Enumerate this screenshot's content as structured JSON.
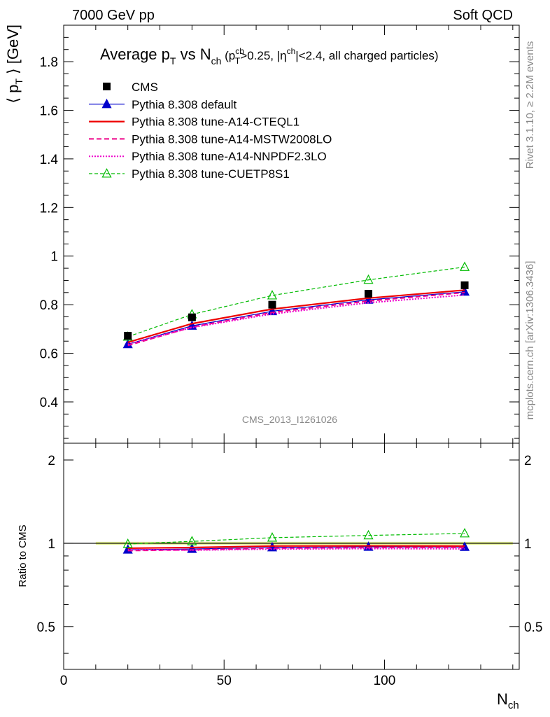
{
  "header": {
    "left": "7000 GeV pp",
    "right": "Soft QCD"
  },
  "side_text": {
    "rivet": "Rivet 3.1.10, ≥ 2.2M events",
    "mcplots": "mcplots.cern.ch [arXiv:1306.3436]"
  },
  "watermark": "CMS_2013_I1261026",
  "chart_data": {
    "type": "line",
    "title": {
      "main_a": "Average p",
      "sub_T": "T",
      "main_b": " vs N",
      "sub_ch": "ch",
      "cond_a": " (p",
      "cond_sup_ch": "ch",
      "cond_sub_T": "T",
      "cond_b": ">0.25, |η",
      "cond_sup_eta": "ch",
      "cond_c": "|<2.4, all charged particles)"
    },
    "ylabel": {
      "a": "⟨ p",
      "sub": "T",
      "b": " ⟩ [GeV]"
    },
    "xlabel": {
      "a": "N",
      "sub": "ch"
    },
    "ratio_ylabel": "Ratio to CMS",
    "xlim": [
      0,
      142
    ],
    "ylim": [
      0.23,
      1.95
    ],
    "ratio_ylim": [
      0.35,
      2.3
    ],
    "x_ticks": [
      "0",
      "50",
      "100"
    ],
    "y_ticks": [
      "0.4",
      "0.6",
      "0.8",
      "1",
      "1.2",
      "1.4",
      "1.6",
      "1.8"
    ],
    "ratio_ticks": [
      "0.5",
      "1",
      "2"
    ],
    "legend_position": "top-left",
    "x": [
      20,
      40,
      65,
      95,
      125
    ],
    "data": {
      "name": "CMS",
      "values": [
        0.672,
        0.748,
        0.8,
        0.845,
        0.88
      ],
      "color": "#000000"
    },
    "series": [
      {
        "name": "Pythia 8.308 default",
        "color": "#0000cc",
        "style": "solid",
        "width": 1.2,
        "marker": "triangle-filled",
        "values": [
          0.637,
          0.713,
          0.773,
          0.82,
          0.853
        ]
      },
      {
        "name": "Pythia 8.308 tune-A14-CTEQL1",
        "color": "#ee0000",
        "style": "solid",
        "width": 2.2,
        "marker": "none",
        "values": [
          0.645,
          0.722,
          0.782,
          0.827,
          0.86
        ]
      },
      {
        "name": "Pythia 8.308 tune-A14-MSTW2008LO",
        "color": "#ee0088",
        "style": "dashed",
        "width": 2.0,
        "marker": "none",
        "values": [
          0.632,
          0.708,
          0.768,
          0.815,
          0.85
        ]
      },
      {
        "name": "Pythia 8.308 tune-A14-NNPDF2.3LO",
        "color": "#ee00cc",
        "style": "dotted",
        "width": 2.0,
        "marker": "none",
        "values": [
          0.637,
          0.706,
          0.762,
          0.808,
          0.84
        ]
      },
      {
        "name": "Pythia 8.308 tune-CUETP8S1",
        "color": "#00bb00",
        "style": "dashed-thin",
        "width": 1.2,
        "marker": "triangle-open",
        "values": [
          0.668,
          0.76,
          0.838,
          0.902,
          0.955
        ]
      }
    ],
    "uncertainty_band_color": "#ddee77"
  }
}
